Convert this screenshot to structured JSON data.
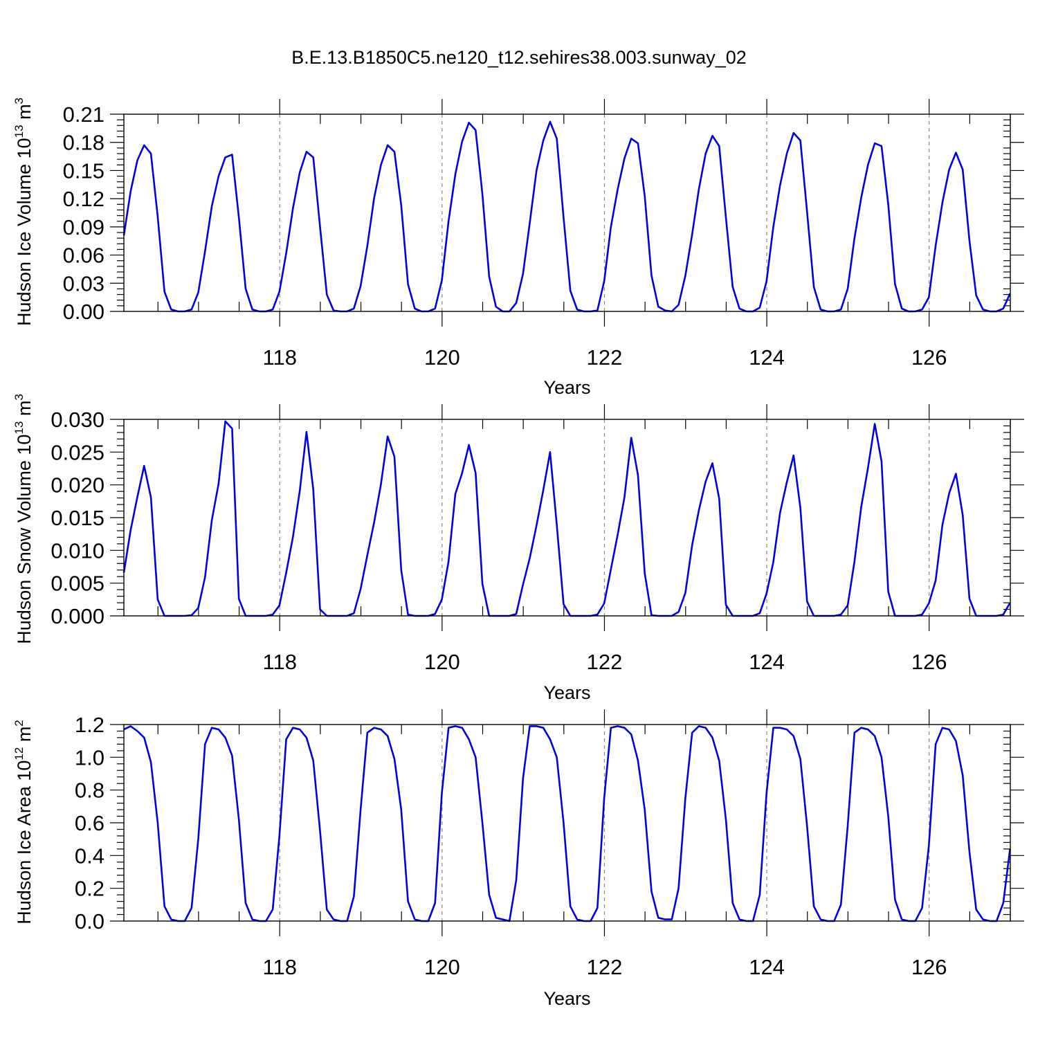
{
  "title": "B.E.13.B1850C5.ne120_t12.sehires38.003.sunway_02",
  "line_color": "#0000e0",
  "chart_data": [
    {
      "type": "line",
      "ylabel": "Hudson Ice Volume 10",
      "ylabel_exp": "13",
      "ylabel_unit": " m",
      "ylabel_unit_exp": "3",
      "xlabel": "Years",
      "xlim": [
        116.08,
        127.0
      ],
      "ylim": [
        0.0,
        0.21
      ],
      "xticks": [
        118,
        120,
        122,
        124,
        126
      ],
      "xtick_labels": [
        "118",
        "120",
        "122",
        "124",
        "126"
      ],
      "yticks": [
        0.0,
        0.03,
        0.06,
        0.09,
        0.12,
        0.15,
        0.18,
        0.21
      ],
      "ytick_labels": [
        "0.00",
        "0.03",
        "0.06",
        "0.09",
        "0.12",
        "0.15",
        "0.18",
        "0.21"
      ],
      "grid": "dashed vertical at even years",
      "x_start": 116.08,
      "x_step": 0.0833333,
      "values": [
        0.081,
        0.128,
        0.161,
        0.177,
        0.168,
        0.101,
        0.021,
        0.002,
        0.0,
        0.0,
        0.002,
        0.02,
        0.064,
        0.112,
        0.144,
        0.164,
        0.167,
        0.1,
        0.024,
        0.002,
        0.0,
        0.0,
        0.002,
        0.021,
        0.062,
        0.11,
        0.148,
        0.17,
        0.164,
        0.09,
        0.018,
        0.001,
        0.0,
        0.0,
        0.003,
        0.027,
        0.07,
        0.121,
        0.156,
        0.177,
        0.17,
        0.113,
        0.029,
        0.003,
        0.0,
        0.0,
        0.003,
        0.033,
        0.096,
        0.146,
        0.181,
        0.201,
        0.193,
        0.125,
        0.037,
        0.005,
        0.0,
        0.0,
        0.009,
        0.04,
        0.094,
        0.15,
        0.182,
        0.202,
        0.184,
        0.1,
        0.022,
        0.002,
        0.0,
        0.0,
        0.001,
        0.032,
        0.09,
        0.13,
        0.163,
        0.184,
        0.179,
        0.123,
        0.038,
        0.005,
        0.001,
        0.0,
        0.007,
        0.038,
        0.082,
        0.13,
        0.168,
        0.187,
        0.176,
        0.1,
        0.026,
        0.003,
        0.0,
        0.0,
        0.004,
        0.032,
        0.09,
        0.134,
        0.168,
        0.19,
        0.182,
        0.106,
        0.026,
        0.002,
        0.0,
        0.0,
        0.002,
        0.024,
        0.078,
        0.121,
        0.156,
        0.179,
        0.176,
        0.114,
        0.029,
        0.003,
        0.0,
        0.0,
        0.002,
        0.015,
        0.07,
        0.116,
        0.151,
        0.169,
        0.151,
        0.075,
        0.017,
        0.002,
        0.0,
        0.0,
        0.003,
        0.019
      ]
    },
    {
      "type": "line",
      "ylabel": "Hudson Snow Volume 10",
      "ylabel_exp": "13",
      "ylabel_unit": " m",
      "ylabel_unit_exp": "3",
      "xlabel": "Years",
      "xlim": [
        116.08,
        127.0
      ],
      "ylim": [
        0.0,
        0.03
      ],
      "xticks": [
        118,
        120,
        122,
        124,
        126
      ],
      "xtick_labels": [
        "118",
        "120",
        "122",
        "124",
        "126"
      ],
      "yticks": [
        0.0,
        0.005,
        0.01,
        0.015,
        0.02,
        0.025,
        0.03
      ],
      "ytick_labels": [
        "0.000",
        "0.005",
        "0.010",
        "0.015",
        "0.020",
        "0.025",
        "0.030"
      ],
      "grid": "dashed vertical at even years",
      "x_start": 116.08,
      "x_step": 0.0833333,
      "values": [
        0.0066,
        0.0131,
        0.0182,
        0.0229,
        0.0181,
        0.0025,
        0.0,
        0.0,
        0.0,
        0.0,
        0.0001,
        0.0012,
        0.0059,
        0.0146,
        0.0202,
        0.0297,
        0.0286,
        0.0026,
        0.0,
        0.0,
        0.0,
        0.0,
        0.0002,
        0.0016,
        0.0066,
        0.0121,
        0.0191,
        0.0281,
        0.0193,
        0.001,
        0.0,
        0.0,
        0.0,
        0.0,
        0.0004,
        0.0041,
        0.0093,
        0.0143,
        0.0201,
        0.0274,
        0.0243,
        0.007,
        0.0002,
        0.0,
        0.0,
        0.0,
        0.0003,
        0.0025,
        0.0083,
        0.0186,
        0.0218,
        0.0261,
        0.0218,
        0.0049,
        0.0,
        0.0,
        0.0,
        0.0,
        0.0003,
        0.0048,
        0.0088,
        0.0138,
        0.0192,
        0.025,
        0.0139,
        0.0018,
        0.0,
        0.0,
        0.0,
        0.0,
        0.0002,
        0.0019,
        0.0071,
        0.0124,
        0.0181,
        0.0272,
        0.0215,
        0.0065,
        0.0001,
        0.0,
        0.0,
        0.0,
        0.0006,
        0.0035,
        0.0108,
        0.0161,
        0.0205,
        0.0233,
        0.0179,
        0.0017,
        0.0,
        0.0,
        0.0,
        0.0,
        0.0004,
        0.0034,
        0.0082,
        0.0157,
        0.0204,
        0.0245,
        0.0165,
        0.0022,
        0.0,
        0.0,
        0.0,
        0.0,
        0.0002,
        0.0016,
        0.0083,
        0.0166,
        0.0226,
        0.0293,
        0.0236,
        0.0037,
        0.0,
        0.0,
        0.0,
        0.0,
        0.0002,
        0.0019,
        0.0054,
        0.0139,
        0.0187,
        0.0217,
        0.0154,
        0.0026,
        0.0,
        0.0,
        0.0,
        0.0,
        0.0002,
        0.002
      ]
    },
    {
      "type": "line",
      "ylabel": "Hudson Ice Area 10",
      "ylabel_exp": "12",
      "ylabel_unit": " m",
      "ylabel_unit_exp": "2",
      "xlabel": "Years",
      "xlim": [
        116.08,
        127.0
      ],
      "ylim": [
        0.0,
        1.2
      ],
      "xticks": [
        118,
        120,
        122,
        124,
        126
      ],
      "xtick_labels": [
        "118",
        "120",
        "122",
        "124",
        "126"
      ],
      "yticks": [
        0.0,
        0.2,
        0.4,
        0.6,
        0.8,
        1.0,
        1.2
      ],
      "ytick_labels": [
        "0.0",
        "0.2",
        "0.4",
        "0.6",
        "0.8",
        "1.0",
        "1.2"
      ],
      "grid": "dashed vertical at even years",
      "x_start": 116.08,
      "x_step": 0.0833333,
      "values": [
        1.17,
        1.19,
        1.16,
        1.12,
        0.97,
        0.6,
        0.09,
        0.01,
        0.0,
        0.0,
        0.08,
        0.5,
        1.08,
        1.18,
        1.17,
        1.12,
        1.01,
        0.62,
        0.11,
        0.01,
        0.0,
        0.0,
        0.07,
        0.52,
        1.11,
        1.18,
        1.17,
        1.12,
        0.98,
        0.55,
        0.07,
        0.01,
        0.0,
        0.0,
        0.15,
        0.68,
        1.15,
        1.18,
        1.17,
        1.13,
        0.99,
        0.68,
        0.12,
        0.01,
        0.0,
        0.0,
        0.11,
        0.78,
        1.18,
        1.19,
        1.18,
        1.11,
        1.0,
        0.6,
        0.16,
        0.02,
        0.01,
        0.0,
        0.25,
        0.87,
        1.19,
        1.19,
        1.18,
        1.11,
        1.0,
        0.6,
        0.09,
        0.01,
        0.0,
        0.0,
        0.08,
        0.75,
        1.18,
        1.19,
        1.18,
        1.14,
        0.98,
        0.68,
        0.18,
        0.02,
        0.01,
        0.01,
        0.2,
        0.75,
        1.15,
        1.19,
        1.18,
        1.12,
        0.98,
        0.62,
        0.11,
        0.01,
        0.0,
        0.0,
        0.16,
        0.78,
        1.18,
        1.18,
        1.17,
        1.13,
        0.99,
        0.58,
        0.09,
        0.01,
        0.0,
        0.0,
        0.1,
        0.58,
        1.15,
        1.18,
        1.17,
        1.13,
        1.0,
        0.64,
        0.13,
        0.01,
        0.0,
        0.0,
        0.08,
        0.46,
        1.08,
        1.18,
        1.17,
        1.1,
        0.89,
        0.42,
        0.07,
        0.01,
        0.0,
        0.0,
        0.11,
        0.44
      ]
    }
  ]
}
